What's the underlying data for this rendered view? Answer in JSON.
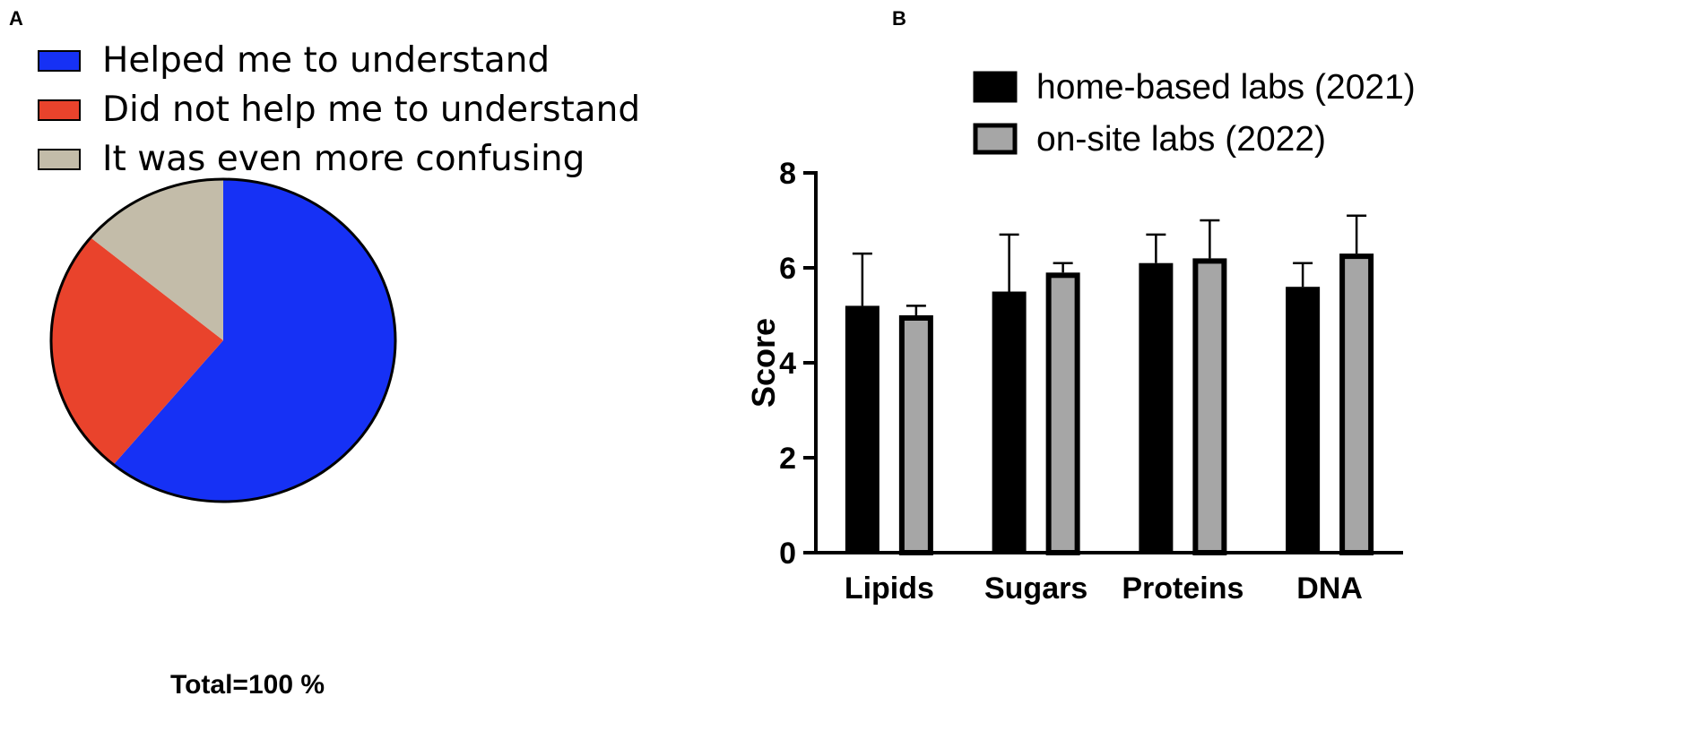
{
  "panels": {
    "a_label": "A",
    "b_label": "B"
  },
  "pie": {
    "total_label": "Total=100 %"
  },
  "chart_data": [
    {
      "type": "pie",
      "labels": [
        "Helped me to understand",
        "Did not help me to understand",
        "It was even more confusing"
      ],
      "values": [
        61,
        25,
        14
      ],
      "colors": [
        "#1631f5",
        "#e9432c",
        "#c3bca9"
      ],
      "legend_position": "top-left",
      "footer": "Total=100 %"
    },
    {
      "type": "bar",
      "categories": [
        "Lipids",
        "Sugars",
        "Proteins",
        "DNA"
      ],
      "series": [
        {
          "name": "home-based labs (2021)",
          "color": "#000000",
          "values": [
            5.2,
            5.5,
            6.1,
            5.6
          ],
          "error": [
            1.1,
            1.2,
            0.6,
            0.5
          ]
        },
        {
          "name": "on-site labs (2022)",
          "color": "#a6a6a6",
          "values": [
            5.0,
            5.9,
            6.2,
            6.3
          ],
          "error": [
            0.2,
            0.2,
            0.8,
            0.8
          ]
        }
      ],
      "ylabel": "Score",
      "ylim": [
        0,
        8
      ],
      "yticks": [
        "0",
        "2",
        "4",
        "6",
        "8"
      ],
      "legend_position": "top-right",
      "grid": false
    }
  ]
}
